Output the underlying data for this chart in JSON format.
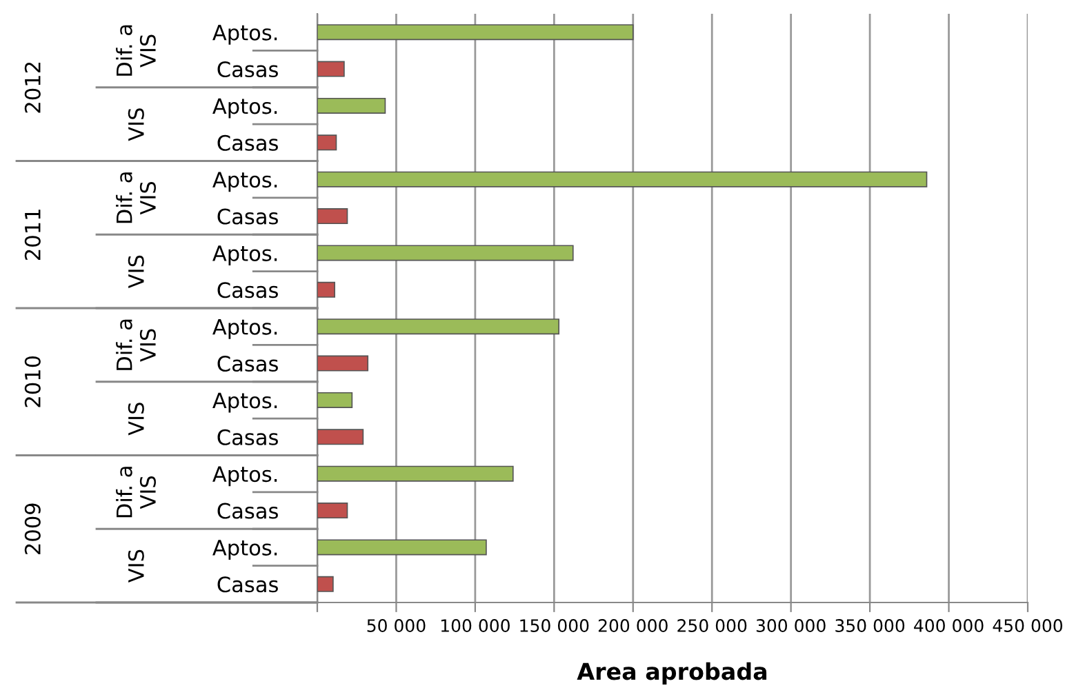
{
  "chart_data": {
    "type": "bar",
    "orientation": "horizontal",
    "xlabel": "Area aprobada",
    "categories": [
      "Aptos.",
      "Casas",
      "Aptos.",
      "Casas",
      "Aptos.",
      "Casas",
      "Aptos.",
      "Casas",
      "Aptos.",
      "Casas",
      "Aptos.",
      "Casas",
      "Aptos.",
      "Casas",
      "Aptos.",
      "Casas"
    ],
    "values": [
      200000,
      17000,
      43000,
      12000,
      386000,
      19000,
      162000,
      11000,
      153000,
      32000,
      22000,
      29000,
      124000,
      19000,
      107000,
      10000
    ],
    "colors": [
      "#9bbb59",
      "#c0504d",
      "#9bbb59",
      "#c0504d",
      "#9bbb59",
      "#c0504d",
      "#9bbb59",
      "#c0504d",
      "#9bbb59",
      "#c0504d",
      "#9bbb59",
      "#c0504d",
      "#9bbb59",
      "#c0504d",
      "#9bbb59",
      "#c0504d"
    ],
    "xlim": [
      0,
      450000
    ],
    "xticks": [
      {
        "value": 0,
        "label": null
      },
      {
        "value": 50000,
        "label": "50 000"
      },
      {
        "value": 100000,
        "label": "100 000"
      },
      {
        "value": 150000,
        "label": "150 000"
      },
      {
        "value": 200000,
        "label": "200 000"
      },
      {
        "value": 250000,
        "label": "250 000"
      },
      {
        "value": 300000,
        "label": "300 000"
      },
      {
        "value": 350000,
        "label": "350 000"
      },
      {
        "value": 400000,
        "label": "400 000"
      },
      {
        "value": 450000,
        "label": "450 000"
      }
    ],
    "grid": "x",
    "legend": false,
    "annotations": [
      "Dif. a\nVIS",
      "VIS",
      "Dif. a\nVIS",
      "VIS",
      "Dif. a\nVIS",
      "VIS",
      "Dif. a\nVIS",
      "VIS",
      "2012",
      "2011",
      "2010",
      "2009"
    ]
  }
}
